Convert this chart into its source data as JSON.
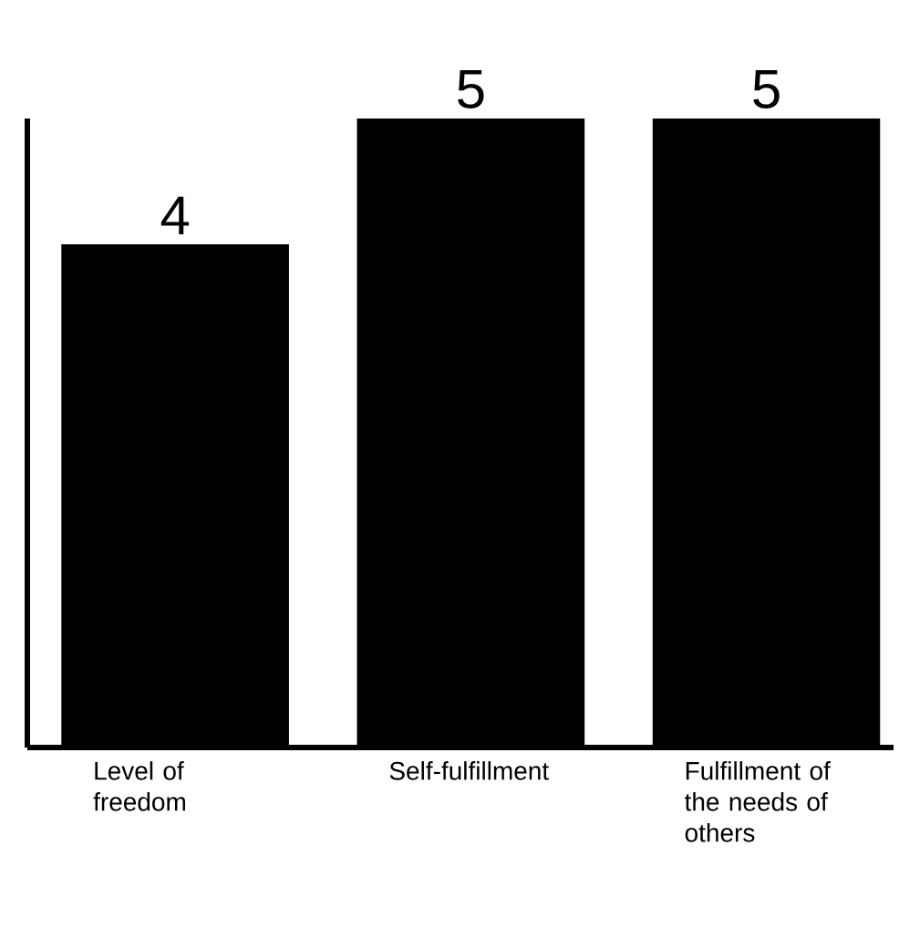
{
  "chart_data": {
    "type": "bar",
    "categories": [
      "Level of freedom",
      "Self-fulfillment",
      "Fulfillment of the needs of others"
    ],
    "values": [
      4,
      5,
      5
    ],
    "color": "#000000",
    "ylim": [
      0,
      5
    ],
    "data_labels": true
  }
}
